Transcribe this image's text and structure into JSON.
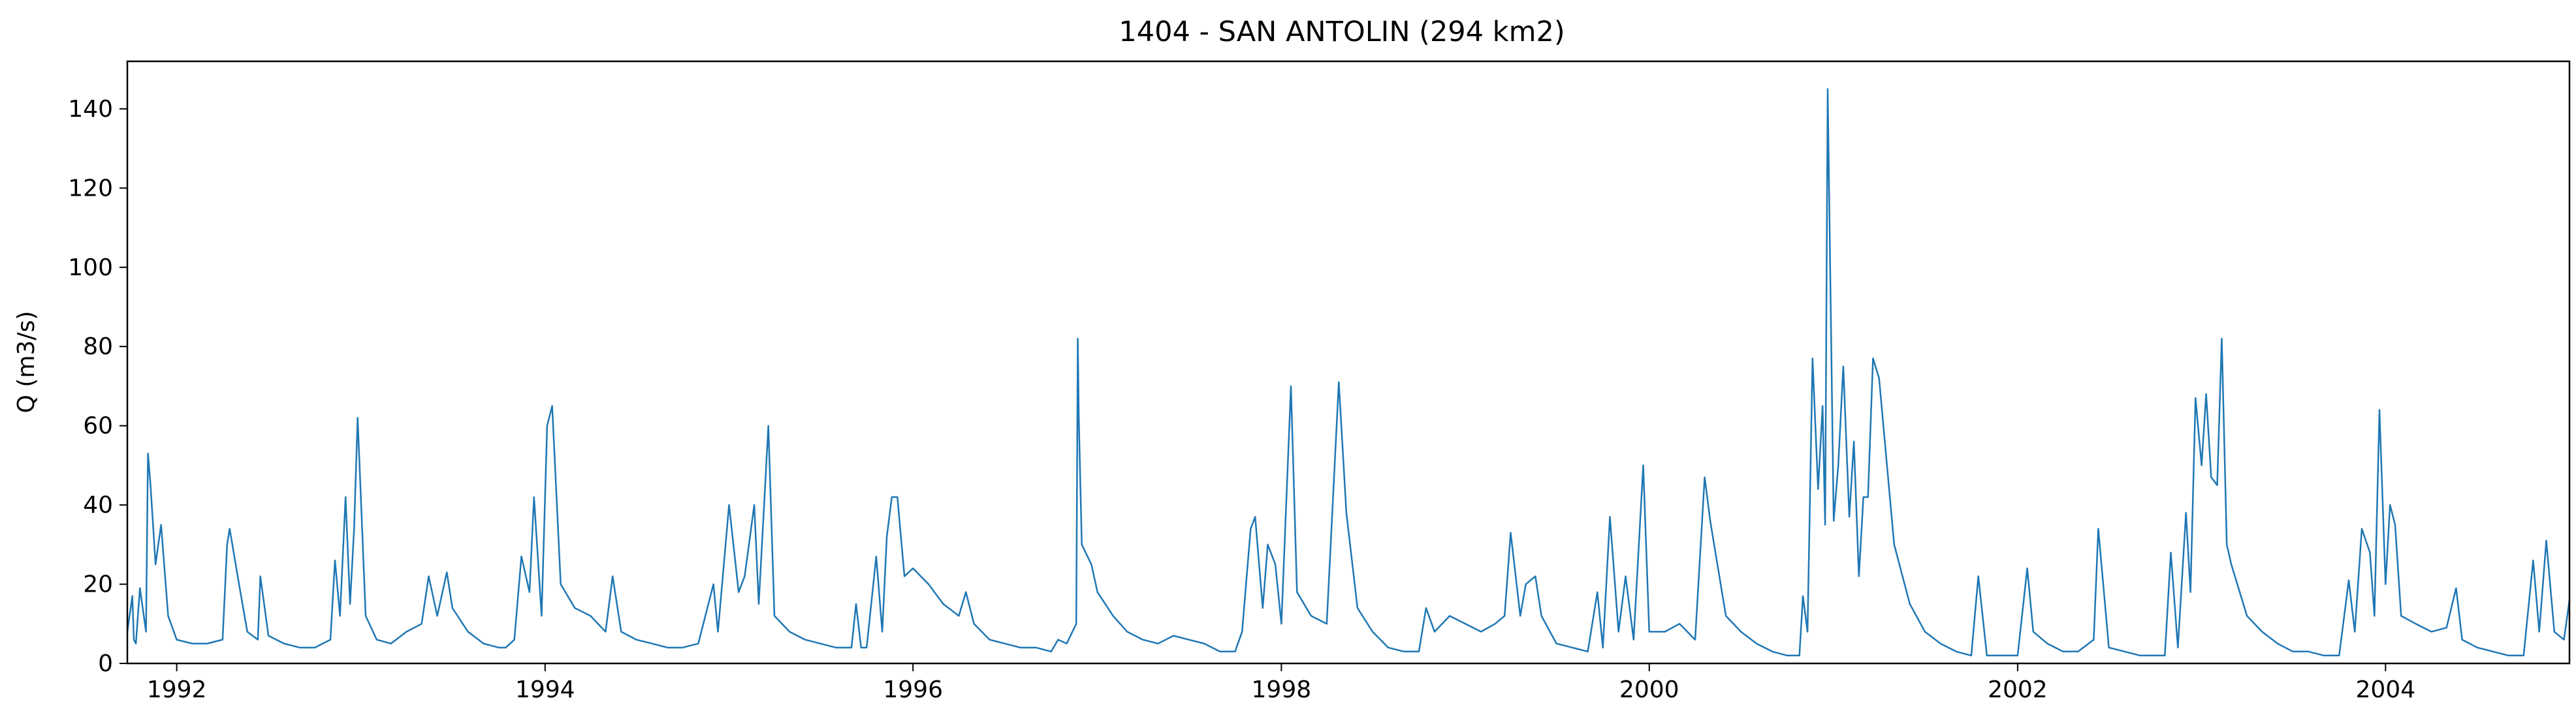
{
  "chart_data": {
    "type": "line",
    "title": "1404 - SAN ANTOLIN (294 km2)",
    "xlabel": "",
    "ylabel": "Q (m3/s)",
    "xlim": [
      "1991-09-25",
      "2004-12-31"
    ],
    "ylim": [
      0,
      152
    ],
    "x_ticks": [
      "1992",
      "1994",
      "1996",
      "1998",
      "2000",
      "2002",
      "2004"
    ],
    "y_ticks": [
      0,
      20,
      40,
      60,
      80,
      100,
      120,
      140
    ],
    "grid": false,
    "legend": "none",
    "line_color": "#1f77b4",
    "series": [
      {
        "x": [
          "1991-09-25",
          "1991-10-05",
          "1991-10-08",
          "1991-10-12",
          "1991-10-20",
          "1991-11-01",
          "1991-11-05",
          "1991-11-10",
          "1991-11-20",
          "1991-12-01",
          "1991-12-15",
          "1992-01-01",
          "1992-02-01",
          "1992-03-01",
          "1992-04-01",
          "1992-04-10",
          "1992-04-15",
          "1992-05-01",
          "1992-05-20",
          "1992-06-10",
          "1992-06-15",
          "1992-07-01",
          "1992-08-01",
          "1992-09-01",
          "1992-10-01",
          "1992-11-01",
          "1992-11-10",
          "1992-11-20",
          "1992-12-01",
          "1992-12-10",
          "1992-12-18",
          "1992-12-25",
          "1993-01-10",
          "1993-02-01",
          "1993-03-01",
          "1993-04-01",
          "1993-05-01",
          "1993-05-15",
          "1993-06-01",
          "1993-06-20",
          "1993-07-01",
          "1993-08-01",
          "1993-09-01",
          "1993-10-01",
          "1993-10-15",
          "1993-11-01",
          "1993-11-15",
          "1993-12-01",
          "1993-12-10",
          "1993-12-25",
          "1994-01-05",
          "1994-01-15",
          "1994-02-01",
          "1994-03-01",
          "1994-04-01",
          "1994-05-01",
          "1994-05-15",
          "1994-06-01",
          "1994-07-01",
          "1994-08-01",
          "1994-09-01",
          "1994-10-01",
          "1994-11-01",
          "1994-12-01",
          "1994-12-10",
          "1995-01-01",
          "1995-01-20",
          "1995-02-01",
          "1995-02-20",
          "1995-03-01",
          "1995-03-20",
          "1995-04-01",
          "1995-05-01",
          "1995-06-01",
          "1995-07-01",
          "1995-08-01",
          "1995-09-01",
          "1995-09-10",
          "1995-09-20",
          "1995-10-01",
          "1995-10-20",
          "1995-11-01",
          "1995-11-10",
          "1995-11-20",
          "1995-12-01",
          "1995-12-15",
          "1996-01-01",
          "1996-02-01",
          "1996-03-01",
          "1996-04-01",
          "1996-04-15",
          "1996-05-01",
          "1996-06-01",
          "1996-07-01",
          "1996-08-01",
          "1996-09-01",
          "1996-10-01",
          "1996-10-15",
          "1996-11-01",
          "1996-11-20",
          "1996-11-23",
          "1996-11-25",
          "1996-12-01",
          "1996-12-20",
          "1997-01-01",
          "1997-02-01",
          "1997-03-01",
          "1997-04-01",
          "1997-05-01",
          "1997-06-01",
          "1997-07-01",
          "1997-08-01",
          "1997-09-01",
          "1997-10-01",
          "1997-10-15",
          "1997-11-01",
          "1997-11-10",
          "1997-11-25",
          "1997-12-05",
          "1997-12-20",
          "1998-01-01",
          "1998-01-20",
          "1998-02-01",
          "1998-03-01",
          "1998-04-01",
          "1998-04-25",
          "1998-05-10",
          "1998-06-01",
          "1998-07-01",
          "1998-08-01",
          "1998-09-01",
          "1998-10-01",
          "1998-10-15",
          "1998-11-01",
          "1998-12-01",
          "1999-01-01",
          "1999-02-01",
          "1999-03-01",
          "1999-03-20",
          "1999-04-01",
          "1999-04-20",
          "1999-05-01",
          "1999-05-20",
          "1999-06-01",
          "1999-07-01",
          "1999-08-01",
          "1999-09-01",
          "1999-09-20",
          "1999-10-01",
          "1999-10-15",
          "1999-11-01",
          "1999-11-15",
          "1999-12-01",
          "1999-12-20",
          "2000-01-01",
          "2000-02-01",
          "2000-03-01",
          "2000-04-01",
          "2000-04-20",
          "2000-05-01",
          "2000-06-01",
          "2000-07-01",
          "2000-08-01",
          "2000-09-01",
          "2000-10-01",
          "2000-10-25",
          "2000-11-01",
          "2000-11-10",
          "2000-11-20",
          "2000-12-01",
          "2000-12-10",
          "2000-12-15",
          "2000-12-20",
          "2001-01-01",
          "2001-01-10",
          "2001-01-20",
          "2001-02-01",
          "2001-02-10",
          "2001-02-20",
          "2001-03-01",
          "2001-03-10",
          "2001-03-20",
          "2001-04-01",
          "2001-05-01",
          "2001-06-01",
          "2001-07-01",
          "2001-08-01",
          "2001-09-01",
          "2001-10-01",
          "2001-10-15",
          "2001-11-01",
          "2001-12-01",
          "2002-01-01",
          "2002-01-20",
          "2002-02-01",
          "2002-03-01",
          "2002-04-01",
          "2002-05-01",
          "2002-06-01",
          "2002-06-10",
          "2002-07-01",
          "2002-08-01",
          "2002-09-01",
          "2002-10-01",
          "2002-10-20",
          "2002-11-01",
          "2002-11-15",
          "2002-12-01",
          "2002-12-10",
          "2002-12-20",
          "2003-01-01",
          "2003-01-10",
          "2003-01-20",
          "2003-02-01",
          "2003-02-10",
          "2003-02-20",
          "2003-03-01",
          "2003-04-01",
          "2003-05-01",
          "2003-06-01",
          "2003-07-01",
          "2003-08-01",
          "2003-09-01",
          "2003-10-01",
          "2003-10-20",
          "2003-11-01",
          "2003-11-15",
          "2003-12-01",
          "2003-12-10",
          "2003-12-20",
          "2004-01-01",
          "2004-01-10",
          "2004-01-20",
          "2004-02-01",
          "2004-03-01",
          "2004-04-01",
          "2004-05-01",
          "2004-05-20",
          "2004-06-01",
          "2004-07-01",
          "2004-08-01",
          "2004-09-01",
          "2004-10-01",
          "2004-10-20",
          "2004-11-01",
          "2004-11-15",
          "2004-12-01",
          "2004-12-20",
          "2004-12-31"
        ],
        "y": [
          8,
          17,
          6,
          5,
          19,
          8,
          53,
          45,
          25,
          35,
          12,
          6,
          5,
          5,
          6,
          30,
          34,
          22,
          8,
          6,
          22,
          7,
          5,
          4,
          4,
          6,
          26,
          12,
          42,
          15,
          34,
          62,
          12,
          6,
          5,
          8,
          10,
          22,
          12,
          23,
          14,
          8,
          5,
          4,
          4,
          6,
          27,
          18,
          42,
          12,
          60,
          65,
          20,
          14,
          12,
          8,
          22,
          8,
          6,
          5,
          4,
          4,
          5,
          20,
          8,
          40,
          18,
          22,
          40,
          15,
          60,
          12,
          8,
          6,
          5,
          4,
          4,
          15,
          4,
          4,
          27,
          8,
          32,
          42,
          42,
          22,
          24,
          20,
          15,
          12,
          18,
          10,
          6,
          5,
          4,
          4,
          3,
          6,
          5,
          10,
          82,
          62,
          30,
          25,
          18,
          12,
          8,
          6,
          5,
          7,
          6,
          5,
          3,
          3,
          8,
          34,
          37,
          14,
          30,
          25,
          10,
          70,
          18,
          12,
          10,
          71,
          38,
          14,
          8,
          4,
          3,
          3,
          14,
          8,
          12,
          10,
          8,
          10,
          12,
          33,
          12,
          20,
          22,
          12,
          5,
          4,
          3,
          18,
          4,
          37,
          8,
          22,
          6,
          50,
          8,
          8,
          10,
          6,
          47,
          36,
          12,
          8,
          5,
          3,
          2,
          2,
          17,
          8,
          77,
          44,
          65,
          35,
          145,
          36,
          50,
          75,
          37,
          56,
          22,
          42,
          42,
          77,
          72,
          30,
          15,
          8,
          5,
          3,
          2,
          22,
          2,
          2,
          2,
          24,
          8,
          5,
          3,
          3,
          6,
          34,
          4,
          3,
          2,
          2,
          2,
          28,
          4,
          38,
          18,
          67,
          50,
          68,
          47,
          45,
          82,
          30,
          25,
          12,
          8,
          5,
          3,
          3,
          2,
          2,
          21,
          8,
          34,
          28,
          12,
          64,
          20,
          40,
          35,
          12,
          10,
          8,
          9,
          19,
          6,
          4,
          3,
          2,
          2,
          26,
          8,
          31,
          8,
          6,
          16
        ]
      }
    ]
  }
}
